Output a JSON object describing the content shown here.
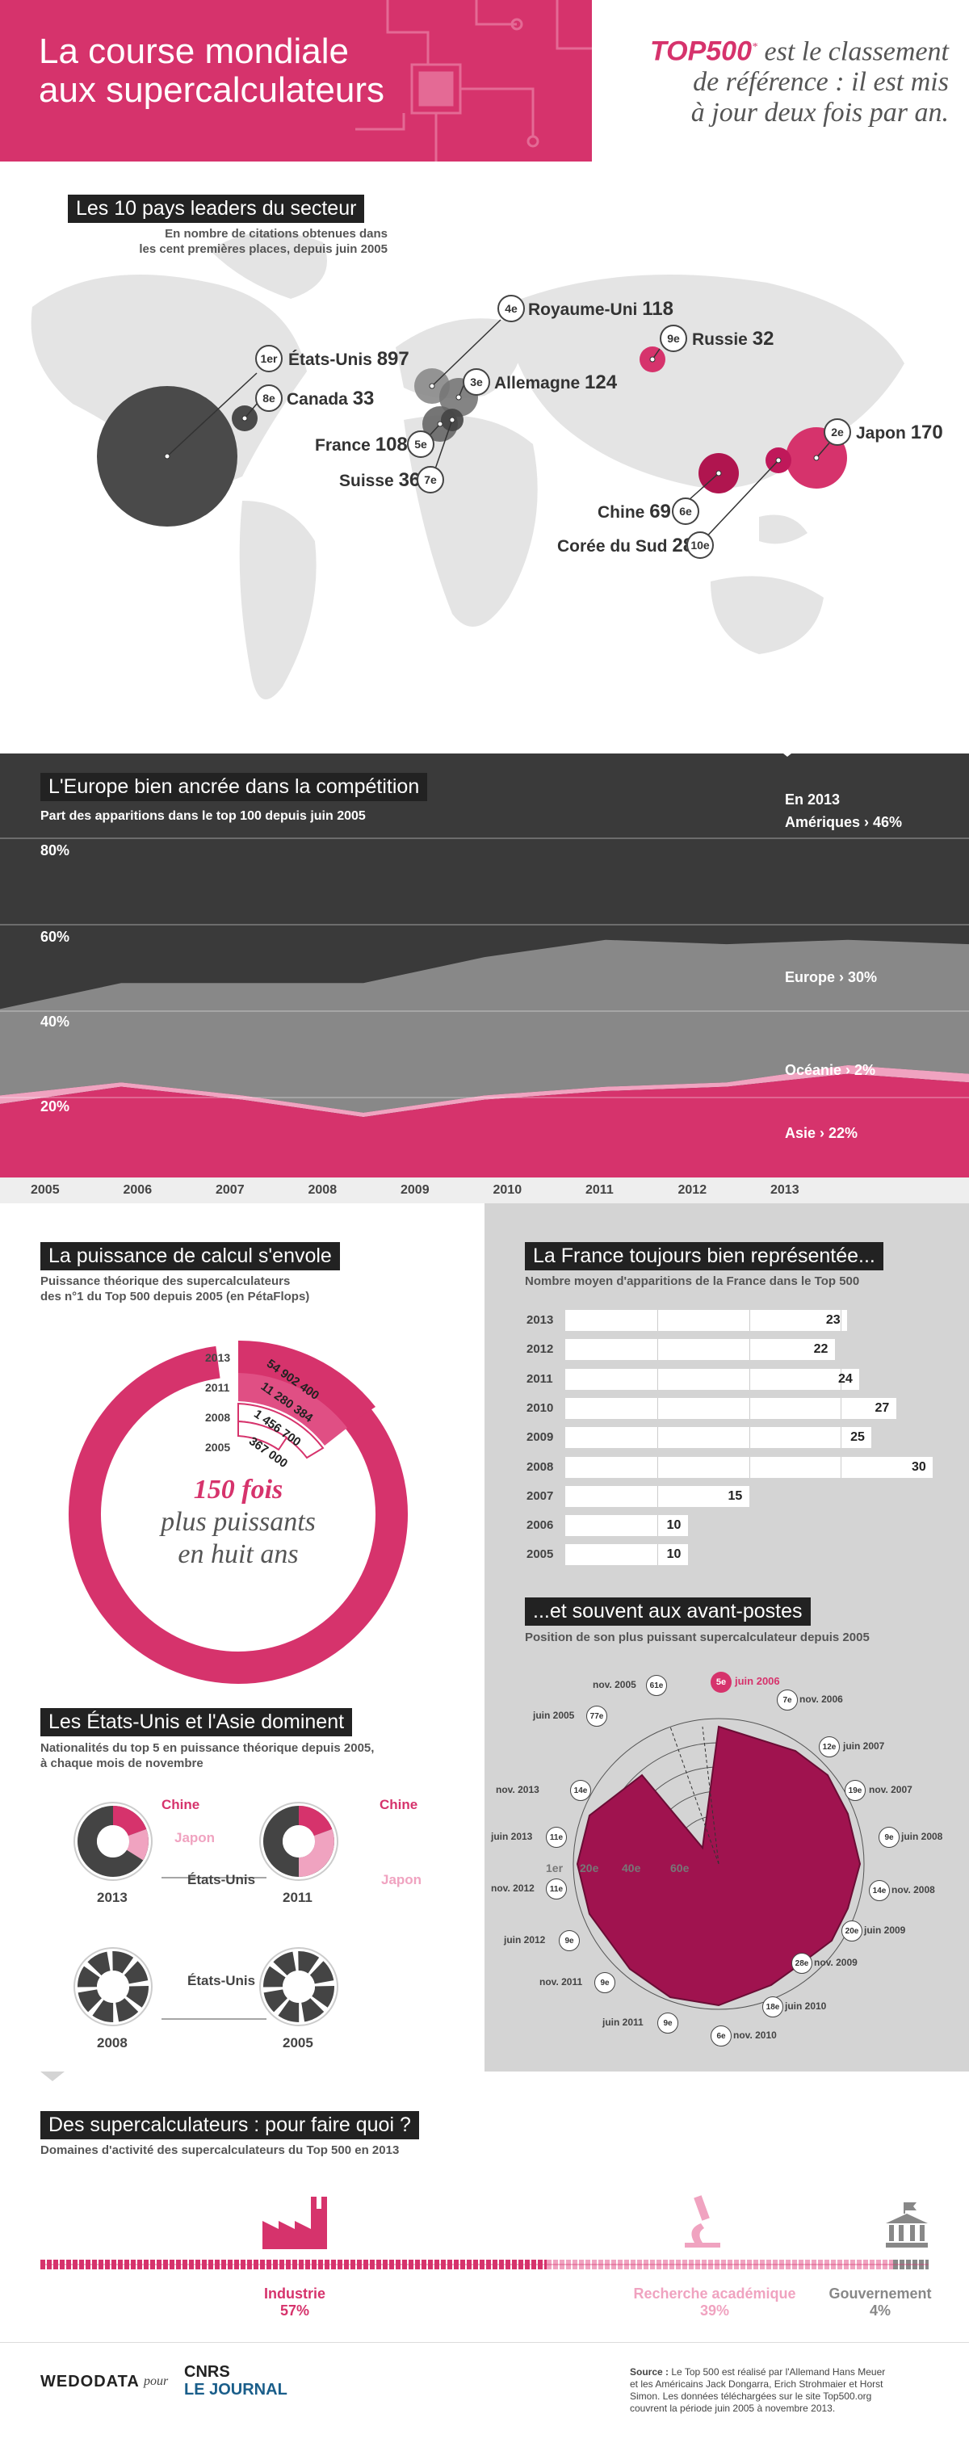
{
  "header": {
    "title_line1": "La course mondiale",
    "title_line2": "aux supercalculateurs",
    "top500": "TOP500",
    "tag_line1": "est le classement",
    "tag_line2": "de référence : il est mis",
    "tag_line3": "à jour deux fois par an.",
    "accent": "#d6336c"
  },
  "map": {
    "title": "Les 10 pays leaders du secteur",
    "subtitle1": "En nombre de citations obtenues dans",
    "subtitle2": "les cent premières places, depuis juin 2005",
    "countries": [
      {
        "rank": "1er",
        "name": "États-Unis",
        "value": "897"
      },
      {
        "rank": "2e",
        "name": "Japon",
        "value": "170"
      },
      {
        "rank": "3e",
        "name": "Allemagne",
        "value": "124"
      },
      {
        "rank": "4e",
        "name": "Royaume-Uni",
        "value": "118"
      },
      {
        "rank": "5e",
        "name": "France",
        "value": "108"
      },
      {
        "rank": "6e",
        "name": "Chine",
        "value": "69"
      },
      {
        "rank": "7e",
        "name": "Suisse",
        "value": "36"
      },
      {
        "rank": "8e",
        "name": "Canada",
        "value": "33"
      },
      {
        "rank": "9e",
        "name": "Russie",
        "value": "32"
      },
      {
        "rank": "10e",
        "name": "Corée du Sud",
        "value": "28"
      }
    ]
  },
  "europe": {
    "title": "L'Europe bien ancrée dans la compétition",
    "subtitle": "Part des apparitions dans le top 100 depuis juin 2005",
    "year_label": "En 2013",
    "yticks": [
      "80%",
      "60%",
      "40%",
      "20%"
    ],
    "legend": [
      {
        "label": "Amériques › 46%"
      },
      {
        "label": "Europe › 30%"
      },
      {
        "label": "Océanie › 2%"
      },
      {
        "label": "Asie › 22%"
      }
    ]
  },
  "chart_data": [
    {
      "type": "area",
      "title": "L'Europe bien ancrée dans la compétition",
      "ylabel": "",
      "x": [
        "2005",
        "2006",
        "2007",
        "2008",
        "2009",
        "2010",
        "2011",
        "2012",
        "2013"
      ],
      "ylim": [
        0,
        80
      ],
      "series": [
        {
          "name": "Asie",
          "values": [
            17,
            21,
            18,
            14,
            18,
            20,
            21,
            24,
            22
          ]
        },
        {
          "name": "Océanie",
          "values": [
            2,
            1,
            1,
            1,
            1,
            1,
            1,
            2,
            2
          ]
        },
        {
          "name": "Europe",
          "values": [
            20,
            23,
            26,
            30,
            32,
            34,
            32,
            29,
            30
          ]
        },
        {
          "name": "Amériques",
          "values": [
            61,
            55,
            55,
            55,
            49,
            45,
            46,
            45,
            46
          ]
        }
      ]
    },
    {
      "type": "bar",
      "title": "La France toujours bien représentée...",
      "categories": [
        "2013",
        "2012",
        "2011",
        "2010",
        "2009",
        "2008",
        "2007",
        "2006",
        "2005"
      ],
      "values": [
        23,
        22,
        24,
        27,
        25,
        30,
        15,
        10,
        10
      ],
      "xlim": [
        0,
        30
      ]
    }
  ],
  "power": {
    "title": "La puissance de calcul s'envole",
    "subtitle1": "Puissance théorique des supercalculateurs",
    "subtitle2": "des n°1 du Top 500 depuis 2005 (en PétaFlops)",
    "years": [
      "2013",
      "2011",
      "2008",
      "2005"
    ],
    "values": [
      "54 902 400",
      "11 280 384",
      "1 456 700",
      "367 000"
    ],
    "big": "150 fois",
    "line2": "plus puissants",
    "line3": "en huit ans"
  },
  "france": {
    "title": "La France toujours bien représentée...",
    "subtitle": "Nombre moyen d'apparitions de la France dans le Top 500"
  },
  "avant": {
    "title": "...et souvent aux avant-postes",
    "subtitle": "Position de son plus puissant supercalculateur depuis 2005",
    "points": [
      {
        "rank": "5e",
        "date": "juin 2006"
      },
      {
        "rank": "7e",
        "date": "nov. 2006"
      },
      {
        "rank": "12e",
        "date": "juin 2007"
      },
      {
        "rank": "19e",
        "date": "nov. 2007"
      },
      {
        "rank": "9e",
        "date": "juin 2008"
      },
      {
        "rank": "14e",
        "date": "nov. 2008"
      },
      {
        "rank": "20e",
        "date": "juin 2009"
      },
      {
        "rank": "28e",
        "date": "nov. 2009"
      },
      {
        "rank": "18e",
        "date": "juin 2010"
      },
      {
        "rank": "6e",
        "date": "nov. 2010"
      },
      {
        "rank": "9e",
        "date": "juin 2011"
      },
      {
        "rank": "9e",
        "date": "nov. 2011"
      },
      {
        "rank": "9e",
        "date": "juin 2012"
      },
      {
        "rank": "11e",
        "date": "nov. 2012"
      },
      {
        "rank": "11e",
        "date": "juin 2013"
      },
      {
        "rank": "14e",
        "date": "nov. 2013"
      },
      {
        "rank": "77e",
        "date": "juin 2005"
      },
      {
        "rank": "61e",
        "date": "nov. 2005"
      }
    ],
    "rings": [
      "1er",
      "20e",
      "40e",
      "60e"
    ]
  },
  "usasia": {
    "title": "Les États-Unis et l'Asie dominent",
    "subtitle1": "Nationalités du top 5 en puissance théorique depuis 2005,",
    "subtitle2": "à chaque mois de novembre",
    "chine": "Chine",
    "japon": "Japon",
    "usa": "États-Unis",
    "years": [
      "2013",
      "2011",
      "2008",
      "2005"
    ]
  },
  "domains": {
    "title": "Des supercalculateurs : pour faire quoi ?",
    "subtitle": "Domaines d'activité des supercalculateurs du Top 500 en 2013",
    "items": [
      {
        "label": "Industrie",
        "pct": "57%",
        "share": 57
      },
      {
        "label": "Recherche académique",
        "pct": "39%",
        "share": 39
      },
      {
        "label": "Gouvernement",
        "pct": "4%",
        "share": 4
      }
    ]
  },
  "footer": {
    "brand": "WEDODATA",
    "pour": "pour",
    "cnrs": "CNRS",
    "journal": "LE JOURNAL",
    "source_lbl": "Source :",
    "source_txt1": "Le Top 500 est réalisé par l'Allemand Hans Meuer",
    "source_txt2": "et les Américains Jack Dongarra, Erich Strohmaier et Horst",
    "source_txt3": "Simon. Les données téléchargées sur le site Top500.org",
    "source_txt4": "couvrent la période juin 2005 à novembre 2013."
  }
}
